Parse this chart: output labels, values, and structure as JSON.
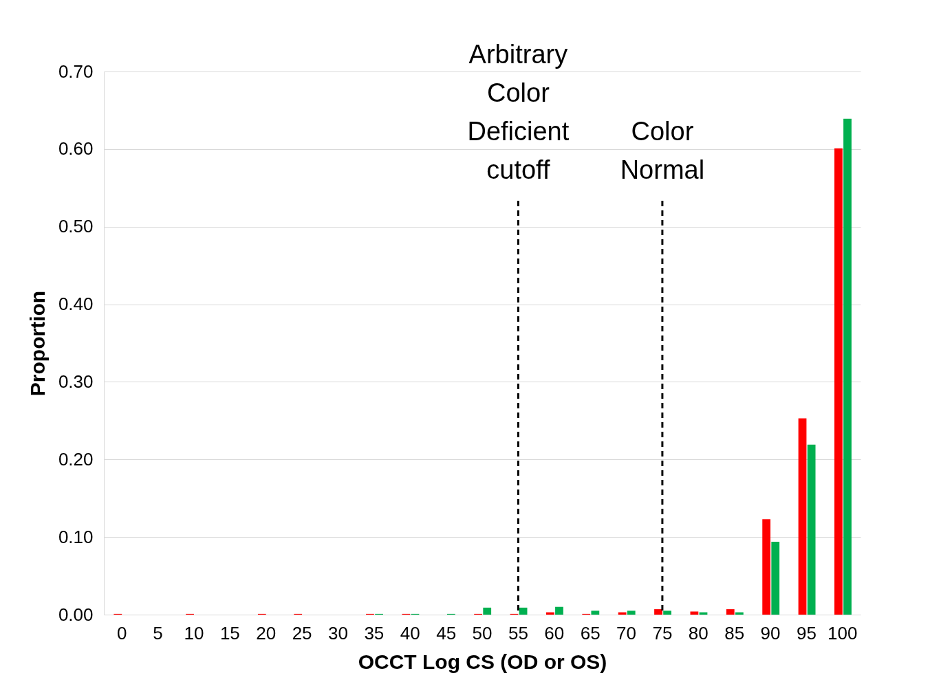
{
  "chart_data": {
    "type": "bar",
    "xlabel": "OCCT Log CS (OD or OS)",
    "ylabel": "Proportion",
    "categories": [
      "0",
      "5",
      "10",
      "15",
      "20",
      "25",
      "30",
      "35",
      "40",
      "45",
      "50",
      "55",
      "60",
      "65",
      "70",
      "75",
      "80",
      "85",
      "90",
      "95",
      "100"
    ],
    "series": [
      {
        "color": "#ff0000",
        "values": [
          0.001,
          0,
          0.001,
          0,
          0.001,
          0.001,
          0,
          0.001,
          0.001,
          0,
          0.001,
          0.001,
          0.003,
          0.001,
          0.003,
          0.007,
          0.004,
          0.007,
          0.123,
          0.253,
          0.601
        ]
      },
      {
        "color": "#00b050",
        "values": [
          0,
          0,
          0,
          0,
          0,
          0,
          0,
          0.001,
          0.001,
          0.001,
          0.009,
          0.009,
          0.01,
          0.005,
          0.005,
          0.005,
          0.003,
          0.003,
          0.094,
          0.219,
          0.639
        ]
      }
    ],
    "ylim": [
      0,
      0.7
    ],
    "yticks": [
      {
        "value": 0,
        "label": "0.00"
      },
      {
        "value": 0.1,
        "label": "0.10"
      },
      {
        "value": 0.2,
        "label": "0.20"
      },
      {
        "value": 0.3,
        "label": "0.30"
      },
      {
        "value": 0.4,
        "label": "0.40"
      },
      {
        "value": 0.5,
        "label": "0.50"
      },
      {
        "value": 0.6,
        "label": "0.60"
      },
      {
        "value": 0.7,
        "label": "0.70"
      }
    ],
    "grid": "y",
    "ref_lines": [
      {
        "axis": "x",
        "value": "55",
        "label": "Arbitrary Color Deficient cutoff",
        "color": "#000000",
        "line_style": "dashed"
      },
      {
        "axis": "x",
        "value": "75",
        "label": "Color Normal",
        "color": "#000000",
        "line_style": "dashed"
      }
    ]
  }
}
